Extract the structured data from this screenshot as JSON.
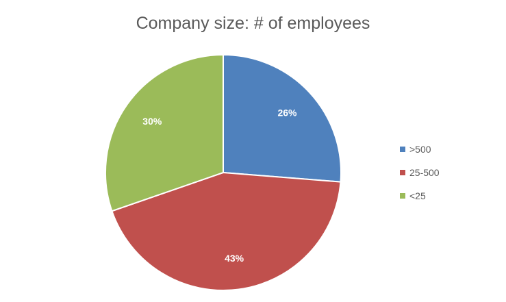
{
  "chart_data": {
    "type": "pie",
    "title": "Company size: # of employees",
    "categories": [
      ">500",
      "25-500",
      "<25"
    ],
    "values": [
      26,
      43,
      30
    ],
    "labels": [
      "26%",
      "43%",
      "30%"
    ],
    "colors": [
      "#4F81BD",
      "#C0504D",
      "#9BBB59"
    ],
    "legend_position": "right"
  }
}
